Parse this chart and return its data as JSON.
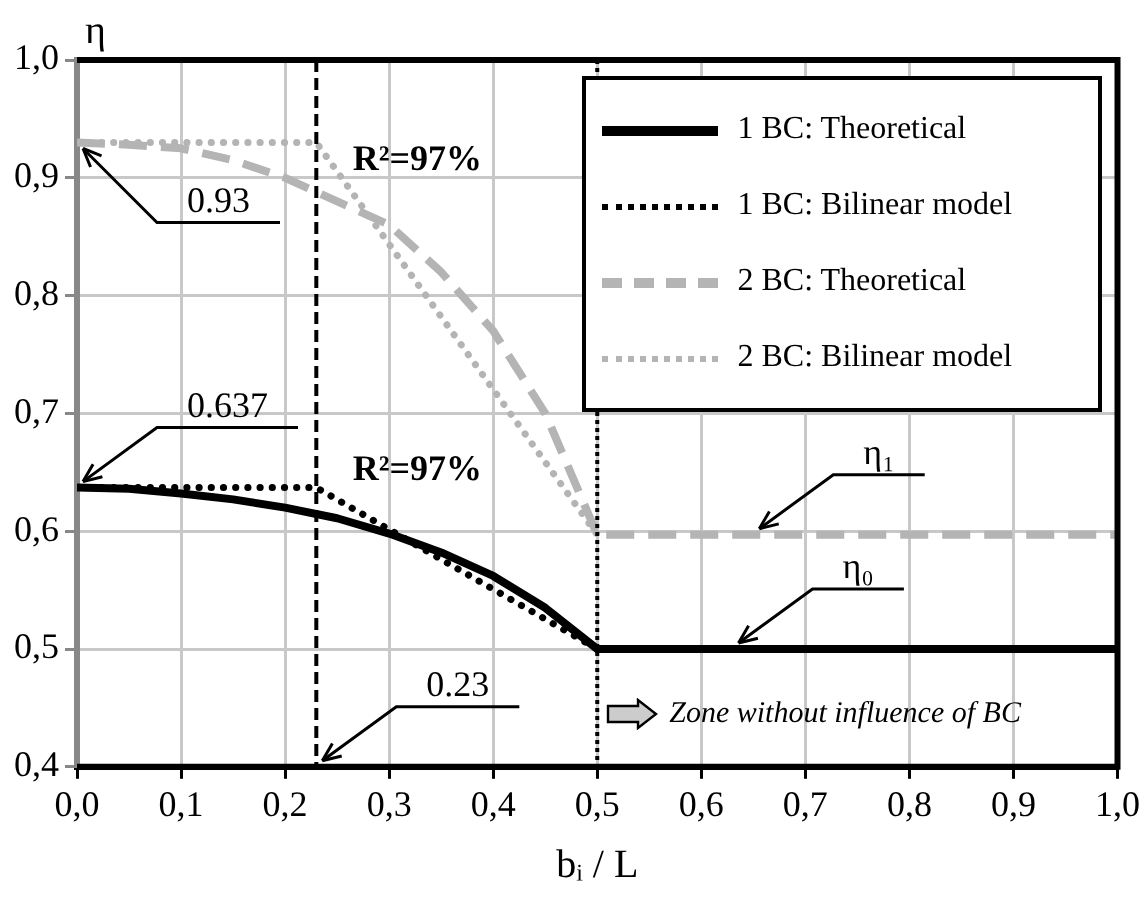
{
  "chart_data": {
    "type": "line",
    "xlabel": "bᵢ / L",
    "ylabel": "η",
    "xlim": [
      0,
      1
    ],
    "ylim": [
      0.4,
      1
    ],
    "xticks": [
      {
        "value": 0,
        "label": "0,0"
      },
      {
        "value": 0.1,
        "label": "0,1"
      },
      {
        "value": 0.2,
        "label": "0,2"
      },
      {
        "value": 0.3,
        "label": "0,3"
      },
      {
        "value": 0.4,
        "label": "0,4"
      },
      {
        "value": 0.5,
        "label": "0,5"
      },
      {
        "value": 0.6,
        "label": "0,6"
      },
      {
        "value": 0.7,
        "label": "0,7"
      },
      {
        "value": 0.8,
        "label": "0,8"
      },
      {
        "value": 0.9,
        "label": "0,9"
      },
      {
        "value": 1,
        "label": "1,0"
      }
    ],
    "yticks": [
      {
        "value": 0.4,
        "label": "0,4"
      },
      {
        "value": 0.5,
        "label": "0,5"
      },
      {
        "value": 0.6,
        "label": "0,6"
      },
      {
        "value": 0.7,
        "label": "0,7"
      },
      {
        "value": 0.8,
        "label": "0,8"
      },
      {
        "value": 0.9,
        "label": "0,9"
      },
      {
        "value": 1,
        "label": "1,0"
      }
    ],
    "grid": true,
    "legend": "top right",
    "marker": "none",
    "series": [
      {
        "name": "1 BC: Theoretical",
        "color": "#000000",
        "line_style": "solid",
        "x": [
          0,
          0.05,
          0.1,
          0.15,
          0.2,
          0.25,
          0.3,
          0.35,
          0.4,
          0.45,
          0.5,
          1
        ],
        "values": [
          0.637,
          0.636,
          0.632,
          0.627,
          0.62,
          0.611,
          0.598,
          0.582,
          0.562,
          0.535,
          0.5,
          0.5
        ]
      },
      {
        "name": "1 BC: Bilinear model",
        "color": "#000000",
        "line_style": "dotted",
        "x": [
          0,
          0.23,
          0.5
        ],
        "values": [
          0.637,
          0.637,
          0.5
        ]
      },
      {
        "name": "2 BC: Theoretical",
        "color": "#b4b4b4",
        "line_style": "dashed",
        "x": [
          0,
          0.05,
          0.1,
          0.15,
          0.2,
          0.25,
          0.3,
          0.35,
          0.4,
          0.45,
          0.5,
          1
        ],
        "values": [
          0.93,
          0.928,
          0.925,
          0.915,
          0.9,
          0.88,
          0.86,
          0.82,
          0.77,
          0.7,
          0.597,
          0.597
        ]
      },
      {
        "name": "2 BC: Bilinear model",
        "color": "#b4b4b4",
        "line_style": "dotted",
        "x": [
          0,
          0.23,
          0.5
        ],
        "values": [
          0.93,
          0.93,
          0.597
        ]
      }
    ],
    "ref_lines": [
      {
        "axis": "x",
        "value": 0.23,
        "color": "#000000",
        "line_style": "dashed"
      },
      {
        "axis": "x",
        "value": 0.5,
        "color": "#000000",
        "line_style": "dotted"
      }
    ],
    "annotations": [
      {
        "text": "0.93",
        "x": 0,
        "y": 0.93
      },
      {
        "text": "0.637",
        "x": 0,
        "y": 0.637
      },
      {
        "text": "0.23",
        "x": 0.23,
        "y": 0.4
      },
      {
        "text": "η₁",
        "x": 0.65,
        "y": 0.597
      },
      {
        "text": "η₀",
        "x": 0.63,
        "y": 0.5
      },
      "R²=97%",
      "R²=97%",
      {
        "text": "Zone without influence of BC",
        "x": 0.5,
        "y": 0.44
      }
    ]
  }
}
